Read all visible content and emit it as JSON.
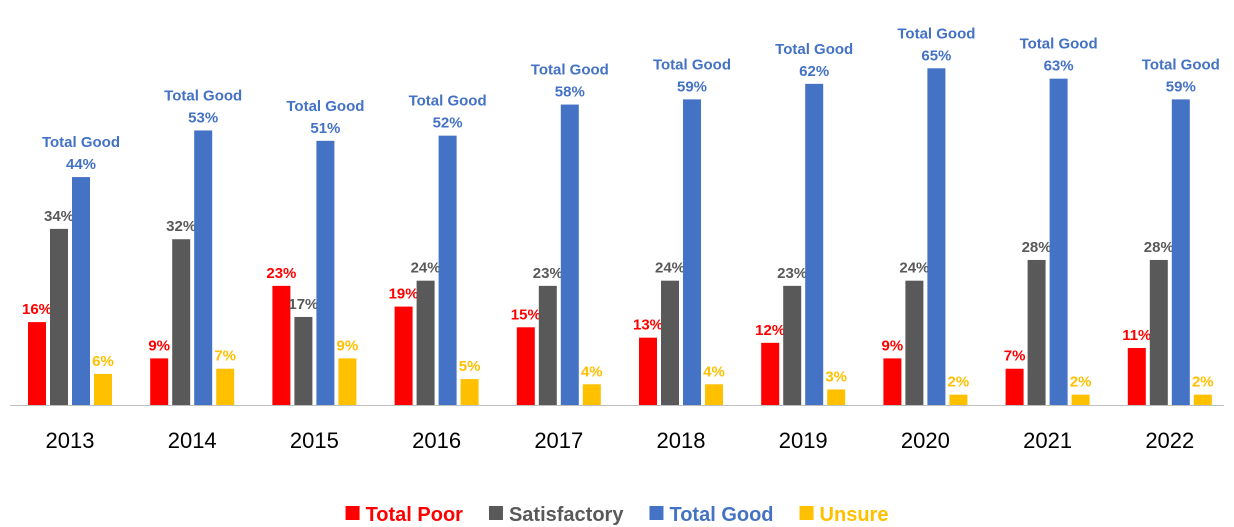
{
  "chart_data": {
    "type": "bar",
    "categories": [
      "2013",
      "2014",
      "2015",
      "2016",
      "2017",
      "2018",
      "2019",
      "2020",
      "2021",
      "2022"
    ],
    "series": [
      {
        "name": "Total Poor",
        "color": "#ff0000",
        "values": [
          16,
          9,
          23,
          19,
          15,
          13,
          12,
          9,
          7,
          11
        ],
        "value_labels": [
          "16%",
          "9%",
          "23%",
          "19%",
          "15%",
          "13%",
          "12%",
          "9%",
          "7%",
          "11%"
        ]
      },
      {
        "name": "Satisfactory",
        "color": "#595959",
        "values": [
          34,
          32,
          17,
          24,
          23,
          24,
          23,
          24,
          28,
          28
        ],
        "value_labels": [
          "34%",
          "32%",
          "17%",
          "24%",
          "23%",
          "24%",
          "23%",
          "24%",
          "28%",
          "28%"
        ]
      },
      {
        "name": "Total Good",
        "color": "#4472c4",
        "values": [
          44,
          53,
          51,
          52,
          58,
          59,
          62,
          65,
          63,
          59
        ],
        "value_labels": [
          "Total Good\n44%",
          "Total Good\n53%",
          "Total Good\n51%",
          "Total Good\n52%",
          "Total Good\n58%",
          "Total Good\n59%",
          "Total Good\n62%",
          "Total Good\n65%",
          "Total Good\n63%",
          "Total Good\n59%"
        ]
      },
      {
        "name": "Unsure",
        "color": "#ffc000",
        "values": [
          6,
          7,
          9,
          5,
          4,
          4,
          3,
          2,
          2,
          2
        ],
        "value_labels": [
          "6%",
          "7%",
          "9%",
          "5%",
          "4%",
          "4%",
          "3%",
          "2%",
          "2%",
          "2%"
        ]
      }
    ]
  }
}
